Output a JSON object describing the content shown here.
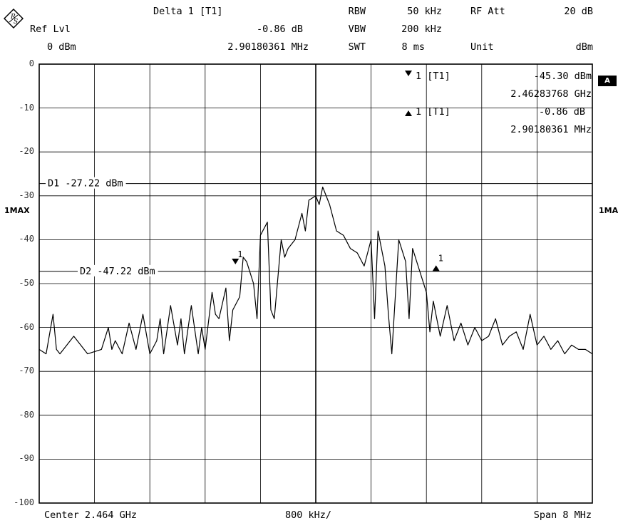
{
  "header": {
    "delta_label": "Delta 1 [T1]",
    "delta_value": "-0.86 dB",
    "delta_freq": "2.90180361 MHz",
    "ref_lvl_label": "Ref Lvl",
    "ref_lvl_value": "0 dBm",
    "rbw_label": "RBW",
    "rbw_value": "50 kHz",
    "vbw_label": "VBW",
    "vbw_value": "200 kHz",
    "swt_label": "SWT",
    "swt_value": "8 ms",
    "rf_att_label": "RF Att",
    "rf_att_value": "20 dB",
    "unit_label": "Unit",
    "unit_value": "dBm"
  },
  "markers": {
    "m1_label": "1 [T1]",
    "m1_level": "-45.30 dBm",
    "m1_freq": "2.46283768 GHz",
    "m2_label": "1 [T1]",
    "m2_level": "-0.86 dB",
    "m2_freq": "2.90180361 MHz",
    "marker_num": "1"
  },
  "side": {
    "trace_left": "1MAX",
    "trace_right": "1MA",
    "tag": "A"
  },
  "footer": {
    "center": "Center 2.464 GHz",
    "div": "800 kHz/",
    "span": "Span 8 MHz"
  },
  "chart_data": {
    "type": "line",
    "xlabel": "",
    "ylabel": "",
    "ylim": [
      -100,
      0
    ],
    "xlim": [
      2.46,
      2.468
    ],
    "x_unit": "GHz",
    "y_unit": "dBm",
    "yticks": [
      "0",
      "-10",
      "-20",
      "-30",
      "-40",
      "-50",
      "-60",
      "-70",
      "-80",
      "-90",
      "-100"
    ],
    "grid": true,
    "lines": [
      {
        "name": "D1",
        "label": "D1 -27.22 dBm",
        "value": -27.22
      },
      {
        "name": "D2",
        "label": "D2 -47.22 dBm",
        "value": -47.22
      }
    ],
    "series": [
      {
        "name": "1MAX",
        "x": [
          2.46,
          2.4601,
          2.4602,
          2.46025,
          2.4603,
          2.4605,
          2.4607,
          2.4609,
          2.461,
          2.46105,
          2.4611,
          2.4612,
          2.4613,
          2.4614,
          2.4615,
          2.4616,
          2.4617,
          2.46175,
          2.4618,
          2.4619,
          2.462,
          2.46205,
          2.4621,
          2.4622,
          2.4623,
          2.46235,
          2.4624,
          2.4625,
          2.46255,
          2.4626,
          2.4627,
          2.46275,
          2.4628,
          2.4629,
          2.46295,
          2.463,
          2.4631,
          2.46315,
          2.4632,
          2.4633,
          2.46335,
          2.4634,
          2.4635,
          2.46355,
          2.4636,
          2.4637,
          2.4638,
          2.46385,
          2.4639,
          2.464,
          2.46405,
          2.4641,
          2.4642,
          2.4643,
          2.4644,
          2.4645,
          2.4646,
          2.4647,
          2.4648,
          2.46485,
          2.4649,
          2.465,
          2.46505,
          2.4651,
          2.4652,
          2.4653,
          2.46535,
          2.4654,
          2.4655,
          2.4656,
          2.46565,
          2.4657,
          2.4658,
          2.4659,
          2.466,
          2.4661,
          2.4662,
          2.4663,
          2.4664,
          2.4665,
          2.4666,
          2.4667,
          2.4668,
          2.4669,
          2.467,
          2.4671,
          2.4672,
          2.4673,
          2.4674,
          2.4675,
          2.4676,
          2.4677,
          2.4678,
          2.4679,
          2.468
        ],
        "y": [
          -65,
          -66,
          -57,
          -65,
          -66,
          -62,
          -66,
          -65,
          -60,
          -65,
          -63,
          -66,
          -59,
          -65,
          -57,
          -66,
          -63,
          -58,
          -66,
          -55,
          -64,
          -58,
          -66,
          -55,
          -66,
          -60,
          -65,
          -52,
          -57,
          -58,
          -51,
          -63,
          -56,
          -53,
          -44,
          -45,
          -50,
          -58,
          -39,
          -36,
          -56,
          -58,
          -40,
          -44,
          -42,
          -40,
          -34,
          -38,
          -31,
          -30,
          -32,
          -28,
          -32,
          -38,
          -39,
          -42,
          -43,
          -46,
          -40,
          -58,
          -38,
          -46,
          -57,
          -66,
          -40,
          -45,
          -58,
          -42,
          -47,
          -52,
          -61,
          -54,
          -62,
          -55,
          -63,
          -59,
          -64,
          -60,
          -63,
          -62,
          -58,
          -64,
          -62,
          -61,
          -65,
          -57,
          -64,
          -62,
          -65,
          -63,
          -66,
          -64,
          -65,
          -65,
          -66
        ]
      }
    ],
    "marker_points": [
      {
        "x": 2.46283768,
        "y": -45.3,
        "direction": "down"
      },
      {
        "x": 2.46573948,
        "y": -46.16,
        "direction": "up"
      }
    ]
  }
}
